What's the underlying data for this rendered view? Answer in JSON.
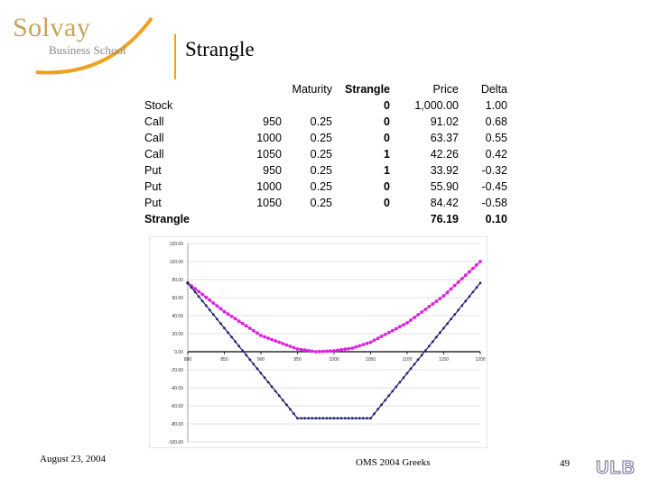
{
  "logo": {
    "name": "Solvay",
    "subtitle": "Business School"
  },
  "title": "Strangle",
  "table": {
    "headers": [
      "",
      "",
      "Maturity",
      "Strangle",
      "Price",
      "Delta"
    ],
    "rows": [
      [
        "Stock",
        "",
        "",
        "0",
        "1,000.00",
        "1.00"
      ],
      [
        "Call",
        "950",
        "0.25",
        "0",
        "91.02",
        "0.68"
      ],
      [
        "Call",
        "1000",
        "0.25",
        "0",
        "63.37",
        "0.55"
      ],
      [
        "Call",
        "1050",
        "0.25",
        "1",
        "42.26",
        "0.42"
      ],
      [
        "Put",
        "950",
        "0.25",
        "1",
        "33.92",
        "-0.32"
      ],
      [
        "Put",
        "1000",
        "0.25",
        "0",
        "55.90",
        "-0.45"
      ],
      [
        "Put",
        "1050",
        "0.25",
        "0",
        "84.42",
        "-0.58"
      ]
    ],
    "total": [
      "Strangle",
      "",
      "",
      "",
      "76.19",
      "0.10"
    ]
  },
  "chart_data": {
    "type": "line",
    "x_ticks": [
      "800",
      "850",
      "900",
      "950",
      "1000",
      "1050",
      "1100",
      "1150",
      "1200"
    ],
    "y_ticks": [
      "120.00",
      "100.00",
      "80.00",
      "60.00",
      "40.00",
      "20.00",
      "0.00",
      "-20.00",
      "-40.00",
      "-60.00",
      "-80.00",
      "-100.00"
    ],
    "xlim": [
      800,
      1200
    ],
    "ylim": [
      -100,
      120
    ],
    "grid": true,
    "series": [
      {
        "color": "#e020e0",
        "x": [
          800,
          850,
          900,
          950,
          975,
          1000,
          1025,
          1050,
          1100,
          1150,
          1200
        ],
        "values": [
          76.19,
          44.5,
          18.0,
          3.0,
          0.0,
          1.0,
          4.0,
          10.5,
          32.0,
          62.0,
          100.0
        ]
      },
      {
        "color": "#202070",
        "x": [
          800,
          950,
          1050,
          1200
        ],
        "values": [
          76.19,
          -73.81,
          -73.81,
          76.19
        ]
      }
    ]
  },
  "footer": {
    "date": "August 23, 2004",
    "course": "OMS 2004 Greeks",
    "page": "49",
    "logo": "ULB"
  }
}
